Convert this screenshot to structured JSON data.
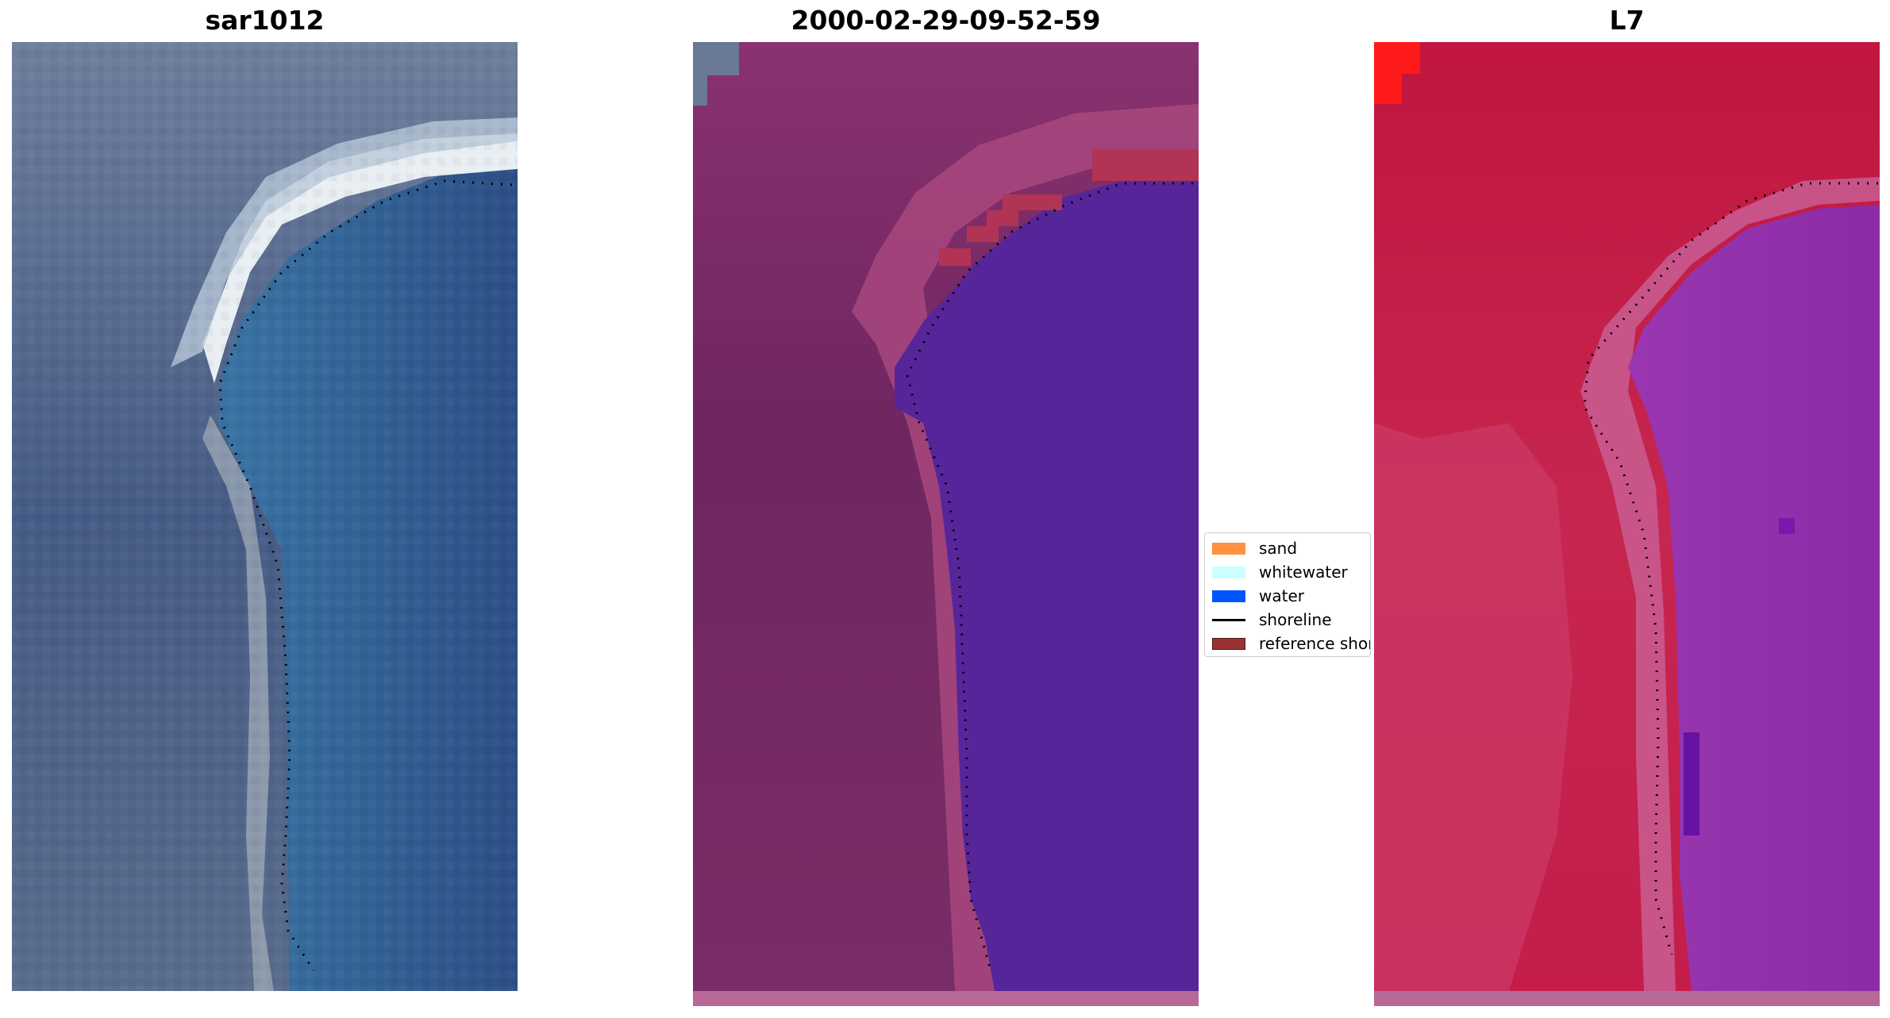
{
  "panels": [
    {
      "title": "sar1012"
    },
    {
      "title": "2000-02-29-09-52-59"
    },
    {
      "title": "L7"
    }
  ],
  "legend": {
    "items": [
      {
        "label": "sand",
        "color": "#ff9140",
        "kind": "patch"
      },
      {
        "label": "whitewater",
        "color": "#ccffff",
        "kind": "patch"
      },
      {
        "label": "water",
        "color": "#0055ff",
        "kind": "patch"
      },
      {
        "label": "shoreline",
        "color": "#000000",
        "kind": "line"
      },
      {
        "label": "reference shoreline",
        "color": "#993333",
        "kind": "patch"
      }
    ]
  },
  "colors": {
    "rgb_land": "#4a5d84",
    "rgb_water": "#2e5a94",
    "classified_land": "#722a62",
    "classified_water": "#56259a",
    "classified_sand_overlay": "#b23454",
    "falsecolor_land": "#c41a4a",
    "falsecolor_water": "#8b2aa4"
  }
}
